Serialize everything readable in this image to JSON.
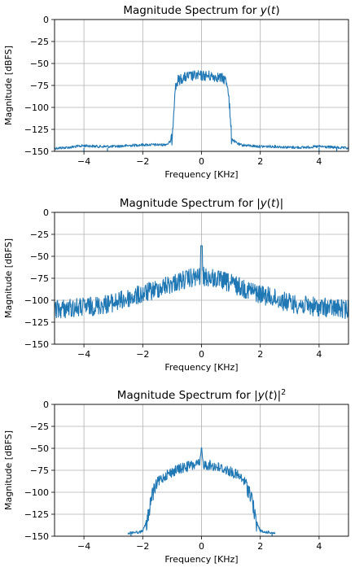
{
  "figure": {
    "line_color": "#1f77b4",
    "grid_color": "#b0b0b0"
  },
  "chart_data": [
    {
      "type": "line",
      "title": "Magnitude Spectrum for y(t)",
      "title_parts": [
        "Magnitude Spectrum for ",
        "y",
        "(",
        "t",
        ")"
      ],
      "xlabel": "Frequency [KHz]",
      "ylabel": "Magnitude [dBFS]",
      "xlim": [
        -5,
        5
      ],
      "ylim": [
        -150,
        0
      ],
      "xticks": [
        -4,
        -2,
        0,
        2,
        4
      ],
      "xtick_labels": [
        "−4",
        "−2",
        "0",
        "2",
        "4"
      ],
      "yticks": [
        0,
        -25,
        -50,
        -75,
        -100,
        -125,
        -150
      ],
      "ytick_labels": [
        "0",
        "−25",
        "−50",
        "−75",
        "−100",
        "−125",
        "−150"
      ],
      "grid": true,
      "series": [
        {
          "color": "#1f77b4",
          "x": [
            -5.0,
            -4.5,
            -4.0,
            -3.5,
            -3.0,
            -2.5,
            -2.0,
            -1.6,
            -1.3,
            -1.15,
            -1.05,
            -1.0,
            -0.95,
            -0.9,
            -0.8,
            -0.5,
            -0.2,
            0.0,
            0.2,
            0.5,
            0.8,
            0.9,
            0.95,
            1.0,
            1.05,
            1.15,
            1.3,
            1.6,
            2.0,
            2.5,
            3.0,
            3.5,
            4.0,
            4.5,
            5.0
          ],
          "y": [
            -150,
            -149,
            -147,
            -148,
            -148,
            -147,
            -146,
            -146,
            -146,
            -145,
            -142,
            -128,
            -100,
            -78,
            -68,
            -64,
            -63,
            -63,
            -63,
            -64,
            -67,
            -75,
            -95,
            -122,
            -140,
            -143,
            -146,
            -147,
            -148,
            -148,
            -149,
            -149,
            -148,
            -149,
            -150
          ]
        }
      ]
    },
    {
      "type": "line",
      "title": "Magnitude Spectrum for |y(t)|",
      "title_parts": [
        "Magnitude Spectrum for |",
        "y",
        "(",
        "t",
        ")|"
      ],
      "xlabel": "Frequency [KHz]",
      "ylabel": "Magnitude [dBFS]",
      "xlim": [
        -5,
        5
      ],
      "ylim": [
        -150,
        0
      ],
      "xticks": [
        -4,
        -2,
        0,
        2,
        4
      ],
      "xtick_labels": [
        "−4",
        "−2",
        "0",
        "2",
        "4"
      ],
      "yticks": [
        0,
        -25,
        -50,
        -75,
        -100,
        -125,
        -150
      ],
      "ytick_labels": [
        "0",
        "−25",
        "−50",
        "−75",
        "−100",
        "−125",
        "−150"
      ],
      "grid": true,
      "series": [
        {
          "color": "#1f77b4",
          "x": [
            -5.0,
            -4.5,
            -4.0,
            -3.5,
            -3.0,
            -2.5,
            -2.0,
            -1.5,
            -1.0,
            -0.5,
            -0.05,
            0.0,
            0.05,
            0.5,
            1.0,
            1.5,
            2.0,
            2.5,
            3.0,
            3.5,
            4.0,
            4.5,
            5.0
          ],
          "y": [
            -108,
            -106,
            -105,
            -103,
            -100,
            -95,
            -90,
            -84,
            -78,
            -73,
            -70,
            -38,
            -70,
            -73,
            -78,
            -84,
            -90,
            -95,
            -100,
            -103,
            -105,
            -106,
            -108
          ]
        }
      ]
    },
    {
      "type": "line",
      "title": "Magnitude Spectrum for |y(t)|²",
      "title_parts": [
        "Magnitude Spectrum for |",
        "y",
        "(",
        "t",
        ")|",
        "2"
      ],
      "xlabel": "Frequency [KHz]",
      "ylabel": "Magnitude [dBFS]",
      "xlim": [
        -5,
        5
      ],
      "ylim": [
        -150,
        0
      ],
      "xticks": [
        -4,
        -2,
        0,
        2,
        4
      ],
      "xtick_labels": [
        "−4",
        "−2",
        "0",
        "2",
        "4"
      ],
      "yticks": [
        0,
        -25,
        -50,
        -75,
        -100,
        -125,
        -150
      ],
      "ytick_labels": [
        "0",
        "−25",
        "−50",
        "−75",
        "−100",
        "−125",
        "−150"
      ],
      "grid": true,
      "series": [
        {
          "color": "#1f77b4",
          "x": [
            -2.5,
            -2.3,
            -2.1,
            -2.0,
            -1.9,
            -1.8,
            -1.7,
            -1.5,
            -1.2,
            -0.8,
            -0.4,
            -0.05,
            0.0,
            0.05,
            0.4,
            0.8,
            1.2,
            1.5,
            1.7,
            1.8,
            1.9,
            2.0,
            2.1,
            2.3,
            2.5
          ],
          "y": [
            -150,
            -149,
            -149,
            -147,
            -140,
            -120,
            -100,
            -88,
            -79,
            -73,
            -69,
            -67,
            -47,
            -67,
            -69,
            -73,
            -79,
            -88,
            -100,
            -120,
            -140,
            -147,
            -149,
            -149,
            -150
          ]
        }
      ]
    }
  ]
}
